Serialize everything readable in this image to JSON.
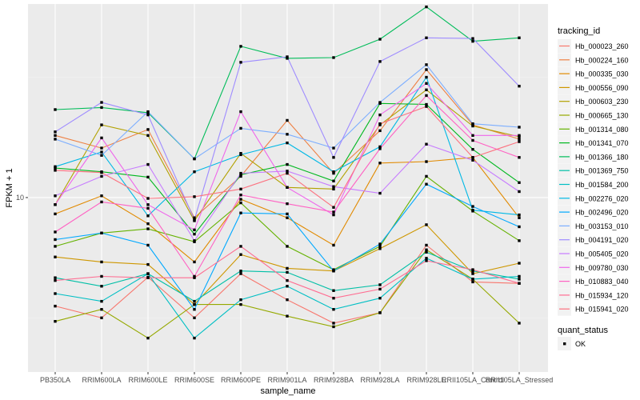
{
  "chart_data": {
    "type": "line",
    "title": "",
    "xlabel": "sample_name",
    "ylabel": "FPKM + 1",
    "y_scale": "log10",
    "ylim": [
      3.66,
      30.5
    ],
    "y_ticks": [
      10
    ],
    "y_tick_labels": [
      "10"
    ],
    "grid": true,
    "legend_position": "right",
    "categories": [
      "PB350LA",
      "RRIM600LA",
      "RRIM600LE",
      "RRIM600SE",
      "RRIM600PE",
      "RRIM901LA",
      "RRIM928BA",
      "RRIM928LA",
      "RRIM928LE",
      "RRII105LA_Control",
      "RRII105LA_Stressed"
    ],
    "color_legend_title": "tracking_id",
    "shape_legend_title": "quant_status",
    "shape_legend_entries": [
      "OK"
    ],
    "series": [
      {
        "name": "Hb_000023_260",
        "color": "#F8766D",
        "values": [
          5.35,
          5.0,
          6.32,
          5.0,
          6.45,
          5.55,
          4.85,
          5.15,
          7.6,
          6.15,
          6.1
        ]
      },
      {
        "name": "Hb_000224_160",
        "color": "#EE8043",
        "values": [
          14.3,
          13.3,
          14.8,
          8.9,
          11.3,
          15.6,
          11.5,
          14.7,
          20.9,
          15.2,
          14.0
        ]
      },
      {
        "name": "Hb_000335_030",
        "color": "#E18A00",
        "values": [
          9.1,
          10.1,
          8.6,
          6.9,
          9.9,
          8.9,
          7.6,
          12.2,
          12.3,
          12.6,
          8.9
        ]
      },
      {
        "name": "Hb_000556_090",
        "color": "#CE9700",
        "values": [
          7.1,
          6.9,
          6.8,
          5.4,
          7.2,
          6.65,
          6.55,
          7.45,
          8.55,
          6.45,
          6.85
        ]
      },
      {
        "name": "Hb_000603_230",
        "color": "#B2A100",
        "values": [
          9.6,
          15.2,
          14.3,
          8.75,
          12.9,
          10.6,
          10.5,
          15.2,
          18.6,
          15.1,
          14.2
        ]
      },
      {
        "name": "Hb_000665_130",
        "color": "#95A900",
        "values": [
          4.9,
          5.25,
          4.45,
          5.4,
          5.4,
          5.05,
          4.75,
          5.15,
          7.4,
          6.25,
          4.85
        ]
      },
      {
        "name": "Hb_001314_080",
        "color": "#64B200",
        "values": [
          7.55,
          8.15,
          8.35,
          7.75,
          9.7,
          7.55,
          6.6,
          7.55,
          11.3,
          9.25,
          7.8
        ]
      },
      {
        "name": "Hb_001341_070",
        "color": "#00B81F",
        "values": [
          11.85,
          11.6,
          11.25,
          8.1,
          11.4,
          12.1,
          11.0,
          17.2,
          17.1,
          13.2,
          10.9
        ]
      },
      {
        "name": "Hb_001366_180",
        "color": "#00BC59",
        "values": [
          16.6,
          16.8,
          16.3,
          12.5,
          23.9,
          22.3,
          22.4,
          24.9,
          30.0,
          24.6,
          25.1
        ]
      },
      {
        "name": "Hb_001369_750",
        "color": "#00BFA6",
        "values": [
          6.3,
          6.0,
          6.45,
          5.5,
          6.55,
          6.5,
          5.85,
          6.05,
          7.3,
          6.55,
          6.25
        ]
      },
      {
        "name": "Hb_001584_200",
        "color": "#00BFC4",
        "values": [
          5.75,
          5.5,
          6.45,
          4.45,
          5.55,
          6.0,
          5.25,
          5.6,
          7.05,
          6.25,
          6.35
        ]
      },
      {
        "name": "Hb_002276_020",
        "color": "#00B8E5",
        "values": [
          11.95,
          13.0,
          9.0,
          11.6,
          12.8,
          13.7,
          11.6,
          13.4,
          20.0,
          9.3,
          9.05
        ]
      },
      {
        "name": "Hb_002496_020",
        "color": "#00A9FF",
        "values": [
          7.85,
          8.15,
          7.6,
          5.25,
          9.15,
          9.1,
          6.55,
          7.65,
          10.8,
          9.5,
          8.45
        ]
      },
      {
        "name": "Hb_003153_010",
        "color": "#7CAEFF",
        "values": [
          14.0,
          12.75,
          16.4,
          12.5,
          14.9,
          14.4,
          13.3,
          17.3,
          21.5,
          15.3,
          15.0
        ]
      },
      {
        "name": "Hb_004191_020",
        "color": "#9F8CFF",
        "values": [
          14.6,
          17.3,
          16.1,
          8.8,
          21.8,
          22.5,
          12.6,
          21.9,
          25.1,
          25.0,
          19.0
        ]
      },
      {
        "name": "Hb_005405_020",
        "color": "#C77CFF",
        "values": [
          10.1,
          11.3,
          12.1,
          7.8,
          11.5,
          11.65,
          10.65,
          10.25,
          13.6,
          12.4,
          10.35
        ]
      },
      {
        "name": "Hb_009780_030",
        "color": "#EF67EB",
        "values": [
          9.6,
          14.1,
          9.6,
          8.3,
          16.4,
          10.6,
          9.05,
          16.1,
          19.3,
          14.3,
          14.3
        ]
      },
      {
        "name": "Hb_010883_040",
        "color": "#FF61C3",
        "values": [
          8.2,
          9.75,
          9.4,
          6.35,
          10.15,
          9.65,
          9.2,
          13.25,
          18.0,
          13.9,
          12.6
        ]
      },
      {
        "name": "Hb_015934_120",
        "color": "#FF6C91",
        "values": [
          6.2,
          6.35,
          6.3,
          6.3,
          7.55,
          6.2,
          5.6,
          5.9,
          6.95,
          6.6,
          6.1
        ]
      },
      {
        "name": "Hb_015941_020",
        "color": "#FC717F",
        "values": [
          11.7,
          11.55,
          9.95,
          10.05,
          10.5,
          11.5,
          9.45,
          15.3,
          16.9,
          12.6,
          13.8
        ]
      }
    ]
  }
}
